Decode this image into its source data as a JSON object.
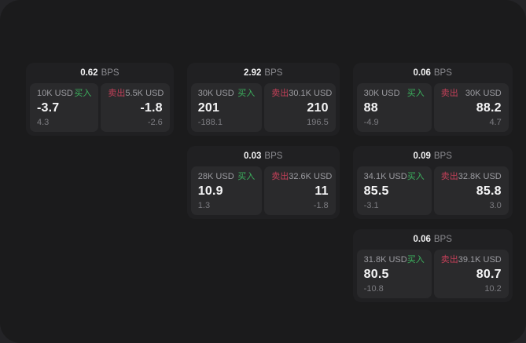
{
  "labels": {
    "buy": "买入",
    "sell": "卖出",
    "bps": "BPS"
  },
  "colors": {
    "buy_green": "#3cb15e",
    "sell_red": "#c44059",
    "screen_background": "#1b1b1c",
    "card_background": "#202022",
    "panel_background": "#2a2a2c",
    "value_text": "#f5f5f6",
    "label_text": "#9c9ca1",
    "dim_text": "#7c7c81"
  },
  "cards": [
    {
      "bps": "0.62",
      "buy": {
        "size": "10K USD",
        "value": "-3.7",
        "delta": "4.3"
      },
      "sell": {
        "size": "5.5K USD",
        "value": "-1.8",
        "delta": "-2.6"
      }
    },
    {
      "bps": "2.92",
      "buy": {
        "size": "30K USD",
        "value": "201",
        "delta": "-188.1"
      },
      "sell": {
        "size": "30.1K USD",
        "value": "210",
        "delta": "196.5"
      }
    },
    {
      "bps": "0.06",
      "buy": {
        "size": "30K USD",
        "value": "88",
        "delta": "-4.9"
      },
      "sell": {
        "size": "30K USD",
        "value": "88.2",
        "delta": "4.7"
      }
    },
    {
      "bps": "0.03",
      "buy": {
        "size": "28K USD",
        "value": "10.9",
        "delta": "1.3"
      },
      "sell": {
        "size": "32.6K USD",
        "value": "11",
        "delta": "-1.8"
      }
    },
    {
      "bps": "0.09",
      "buy": {
        "size": "34.1K USD",
        "value": "85.5",
        "delta": "-3.1"
      },
      "sell": {
        "size": "32.8K USD",
        "value": "85.8",
        "delta": "3.0"
      }
    },
    {
      "bps": "0.06",
      "buy": {
        "size": "31.8K USD",
        "value": "80.5",
        "delta": "-10.8"
      },
      "sell": {
        "size": "39.1K USD",
        "value": "80.7",
        "delta": "10.2"
      }
    }
  ]
}
